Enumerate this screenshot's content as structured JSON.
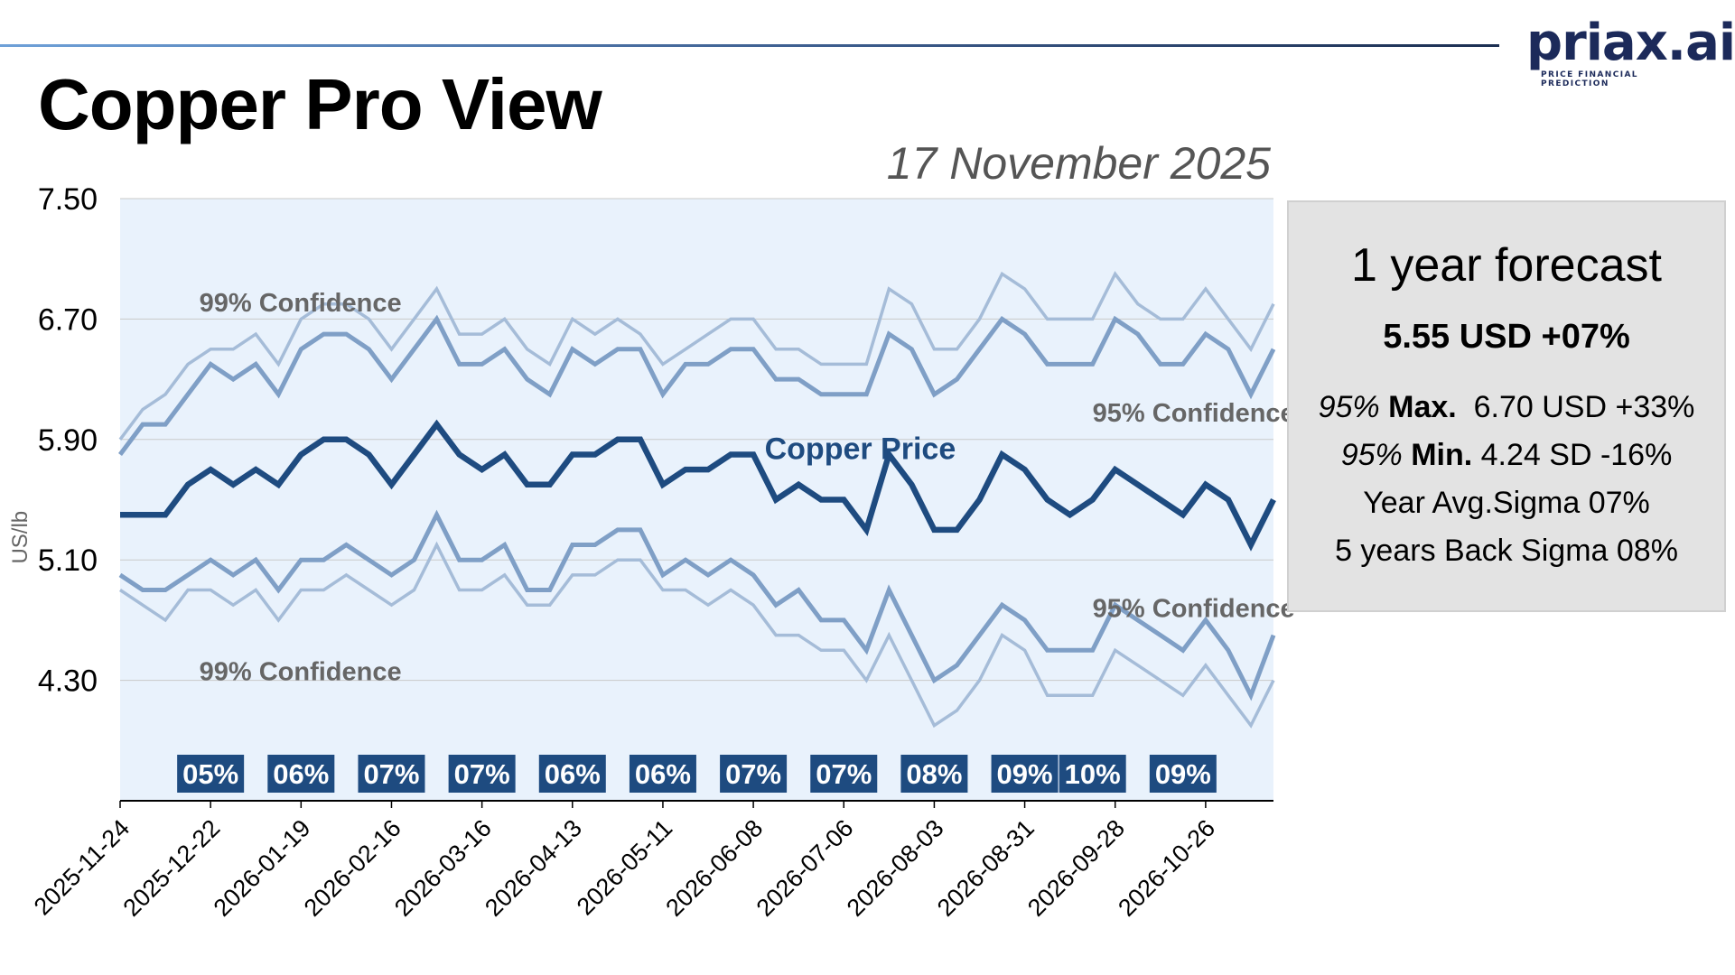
{
  "header": {
    "title": "Copper Pro View",
    "date": "17 November 2025",
    "logo_text": "priax.ai",
    "logo_tagline": "PRICE FINANCIAL PREDICTION"
  },
  "forecast": {
    "title": "1 year forecast",
    "main": "5.55 USD +07%",
    "max_prefix": "95%",
    "max_label": "Max.",
    "max_value": "6.70 USD +33%",
    "min_prefix": "95%",
    "min_label": "Min.",
    "min_value": "4.24 SD -16%",
    "avg_sigma": "Year Avg.Sigma 07%",
    "back_sigma": "5 years Back Sigma 08%"
  },
  "colors": {
    "plot_bg": "#e9f2fc",
    "grid": "#c9c9c9",
    "price": "#1e4b80",
    "ci95": "#7f9fc6",
    "ci99": "#a5bcd8",
    "sigma_bg": "#1e4b80"
  },
  "chart_data": {
    "type": "line",
    "ylabel": "US/lb",
    "ylim": [
      3.5,
      7.5
    ],
    "yticks": [
      "7.50",
      "6.70",
      "5.90",
      "5.10",
      "4.30"
    ],
    "yticks_values": [
      7.5,
      6.7,
      5.9,
      5.1,
      4.3
    ],
    "xtick_labels": [
      "2025-11-24",
      "2025-12-22",
      "2026-01-19",
      "2026-02-16",
      "2026-03-16",
      "2026-04-13",
      "2026-05-11",
      "2026-06-08",
      "2026-07-06",
      "2026-08-03",
      "2026-08-31",
      "2026-09-28",
      "2026-10-26"
    ],
    "xtick_index": [
      0,
      4,
      8,
      12,
      16,
      20,
      24,
      28,
      32,
      36,
      40,
      44,
      48
    ],
    "series_labels": {
      "upper99": "99% Confidence",
      "upper95": "95% Confidence",
      "price": "Copper Price",
      "lower95": "95% Confidence",
      "lower99": "99% Confidence"
    },
    "label_anchors": {
      "upper99": [
        3.5,
        6.75
      ],
      "upper95": [
        43,
        6.02
      ],
      "price": [
        28.5,
        5.77
      ],
      "lower95": [
        43,
        4.72
      ],
      "lower99": [
        3.5,
        4.3
      ]
    },
    "series": [
      {
        "name": "Copper Price",
        "key": "price",
        "values": [
          5.4,
          5.4,
          5.4,
          5.6,
          5.7,
          5.6,
          5.7,
          5.6,
          5.8,
          5.9,
          5.9,
          5.8,
          5.6,
          5.8,
          6.0,
          5.8,
          5.7,
          5.8,
          5.6,
          5.6,
          5.8,
          5.8,
          5.9,
          5.9,
          5.6,
          5.7,
          5.7,
          5.8,
          5.8,
          5.5,
          5.6,
          5.5,
          5.5,
          5.3,
          5.8,
          5.6,
          5.3,
          5.3,
          5.5,
          5.8,
          5.7,
          5.5,
          5.4,
          5.5,
          5.7,
          5.6,
          5.5,
          5.4,
          5.6,
          5.5,
          5.2,
          5.5
        ]
      },
      {
        "name": "95% Confidence upper",
        "key": "upper95",
        "values": [
          5.8,
          6.0,
          6.0,
          6.2,
          6.4,
          6.3,
          6.4,
          6.2,
          6.5,
          6.6,
          6.6,
          6.5,
          6.3,
          6.5,
          6.7,
          6.4,
          6.4,
          6.5,
          6.3,
          6.2,
          6.5,
          6.4,
          6.5,
          6.5,
          6.2,
          6.4,
          6.4,
          6.5,
          6.5,
          6.3,
          6.3,
          6.2,
          6.2,
          6.2,
          6.6,
          6.5,
          6.2,
          6.3,
          6.5,
          6.7,
          6.6,
          6.4,
          6.4,
          6.4,
          6.7,
          6.6,
          6.4,
          6.4,
          6.6,
          6.5,
          6.2,
          6.5
        ]
      },
      {
        "name": "99% Confidence upper",
        "key": "upper99",
        "values": [
          5.9,
          6.1,
          6.2,
          6.4,
          6.5,
          6.5,
          6.6,
          6.4,
          6.7,
          6.8,
          6.8,
          6.7,
          6.5,
          6.7,
          6.9,
          6.6,
          6.6,
          6.7,
          6.5,
          6.4,
          6.7,
          6.6,
          6.7,
          6.6,
          6.4,
          6.5,
          6.6,
          6.7,
          6.7,
          6.5,
          6.5,
          6.4,
          6.4,
          6.4,
          6.9,
          6.8,
          6.5,
          6.5,
          6.7,
          7.0,
          6.9,
          6.7,
          6.7,
          6.7,
          7.0,
          6.8,
          6.7,
          6.7,
          6.9,
          6.7,
          6.5,
          6.8
        ]
      },
      {
        "name": "95% Confidence lower",
        "key": "lower95",
        "values": [
          5.0,
          4.9,
          4.9,
          5.0,
          5.1,
          5.0,
          5.1,
          4.9,
          5.1,
          5.1,
          5.2,
          5.1,
          5.0,
          5.1,
          5.4,
          5.1,
          5.1,
          5.2,
          4.9,
          4.9,
          5.2,
          5.2,
          5.3,
          5.3,
          5.0,
          5.1,
          5.0,
          5.1,
          5.0,
          4.8,
          4.9,
          4.7,
          4.7,
          4.5,
          4.9,
          4.6,
          4.3,
          4.4,
          4.6,
          4.8,
          4.7,
          4.5,
          4.5,
          4.5,
          4.8,
          4.7,
          4.6,
          4.5,
          4.7,
          4.5,
          4.2,
          4.6
        ]
      },
      {
        "name": "99% Confidence lower",
        "key": "lower99",
        "values": [
          4.9,
          4.8,
          4.7,
          4.9,
          4.9,
          4.8,
          4.9,
          4.7,
          4.9,
          4.9,
          5.0,
          4.9,
          4.8,
          4.9,
          5.2,
          4.9,
          4.9,
          5.0,
          4.8,
          4.8,
          5.0,
          5.0,
          5.1,
          5.1,
          4.9,
          4.9,
          4.8,
          4.9,
          4.8,
          4.6,
          4.6,
          4.5,
          4.5,
          4.3,
          4.6,
          4.3,
          4.0,
          4.1,
          4.3,
          4.6,
          4.5,
          4.2,
          4.2,
          4.2,
          4.5,
          4.4,
          4.3,
          4.2,
          4.4,
          4.2,
          4.0,
          4.3
        ]
      }
    ],
    "sigma_badges": [
      {
        "label": "05%",
        "index": 4
      },
      {
        "label": "06%",
        "index": 8
      },
      {
        "label": "07%",
        "index": 12
      },
      {
        "label": "07%",
        "index": 16
      },
      {
        "label": "06%",
        "index": 20
      },
      {
        "label": "06%",
        "index": 24
      },
      {
        "label": "07%",
        "index": 28
      },
      {
        "label": "07%",
        "index": 32
      },
      {
        "label": "08%",
        "index": 36
      },
      {
        "label": "09%",
        "index": 40
      },
      {
        "label": "10%",
        "index": 43
      },
      {
        "label": "09%",
        "index": 47
      }
    ]
  }
}
